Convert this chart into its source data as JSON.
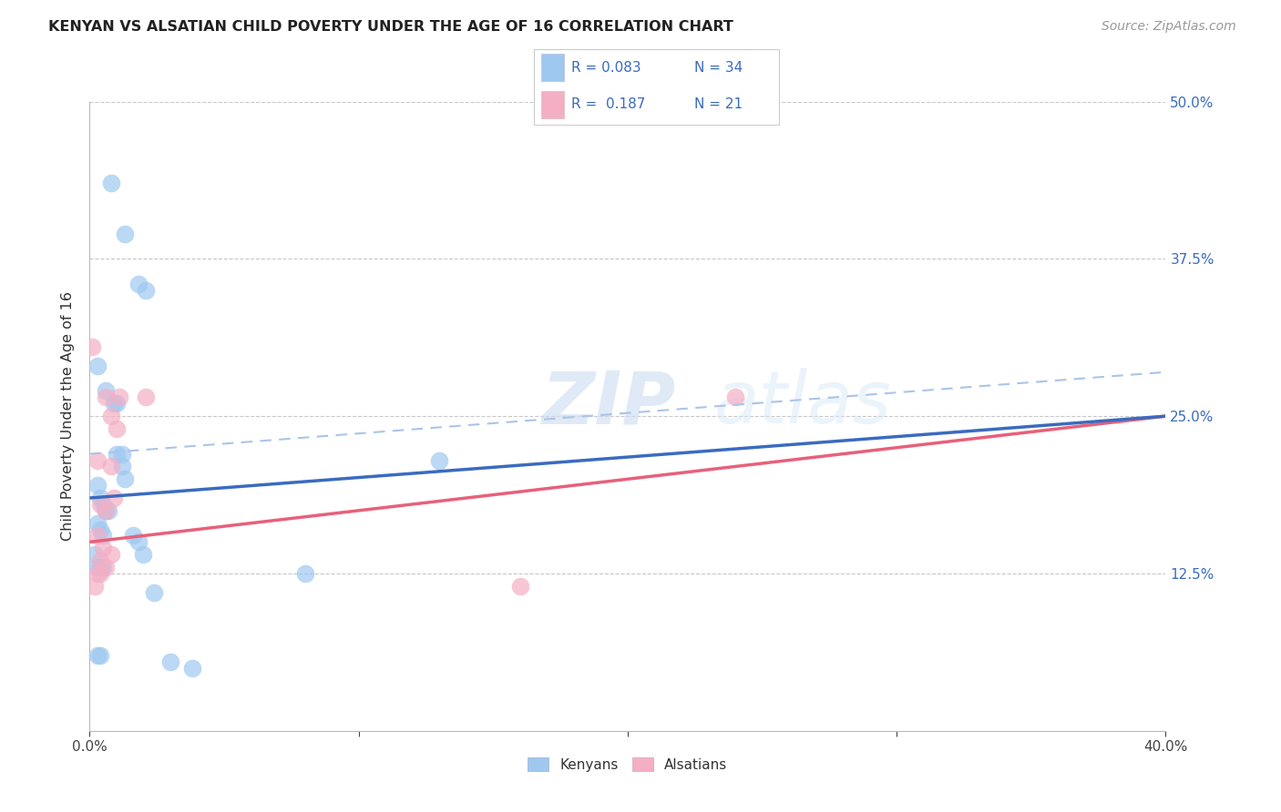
{
  "title": "KENYAN VS ALSATIAN CHILD POVERTY UNDER THE AGE OF 16 CORRELATION CHART",
  "source": "Source: ZipAtlas.com",
  "ylabel": "Child Poverty Under the Age of 16",
  "xlim": [
    0.0,
    0.4
  ],
  "ylim": [
    0.0,
    0.5
  ],
  "xticks": [
    0.0,
    0.1,
    0.2,
    0.3,
    0.4
  ],
  "yticks": [
    0.0,
    0.125,
    0.25,
    0.375,
    0.5
  ],
  "ytick_labels": [
    "",
    "12.5%",
    "25.0%",
    "37.5%",
    "50.0%"
  ],
  "xtick_labels": [
    "0.0%",
    "",
    "",
    "",
    "40.0%"
  ],
  "kenyan_color": "#9ec8f0",
  "alsatian_color": "#f4afc4",
  "line_kenyan_color": "#3a6bbf",
  "line_alsatian_color": "#e8607a",
  "line_kenyan_dashed_color": "#aac4e8",
  "legend_text_color": "#3a6bbf",
  "R_kenyan": 0.083,
  "N_kenyan": 34,
  "R_alsatian": 0.187,
  "N_alsatian": 21,
  "background_color": "#ffffff",
  "grid_color": "#c8c8c8",
  "kenyan_x": [
    0.008,
    0.013,
    0.018,
    0.021,
    0.003,
    0.006,
    0.009,
    0.01,
    0.01,
    0.012,
    0.012,
    0.013,
    0.003,
    0.004,
    0.005,
    0.006,
    0.007,
    0.003,
    0.004,
    0.005,
    0.016,
    0.018,
    0.02,
    0.024,
    0.002,
    0.003,
    0.004,
    0.005,
    0.003,
    0.004,
    0.03,
    0.038,
    0.13,
    0.08
  ],
  "kenyan_y": [
    0.435,
    0.395,
    0.355,
    0.35,
    0.29,
    0.27,
    0.26,
    0.26,
    0.22,
    0.22,
    0.21,
    0.2,
    0.195,
    0.185,
    0.18,
    0.175,
    0.175,
    0.165,
    0.16,
    0.155,
    0.155,
    0.15,
    0.14,
    0.11,
    0.14,
    0.13,
    0.13,
    0.13,
    0.06,
    0.06,
    0.055,
    0.05,
    0.215,
    0.125
  ],
  "alsatian_x": [
    0.001,
    0.006,
    0.008,
    0.01,
    0.011,
    0.021,
    0.003,
    0.004,
    0.006,
    0.009,
    0.003,
    0.005,
    0.008,
    0.24,
    0.004,
    0.006,
    0.003,
    0.004,
    0.002,
    0.16,
    0.008
  ],
  "alsatian_y": [
    0.305,
    0.265,
    0.25,
    0.24,
    0.265,
    0.265,
    0.215,
    0.18,
    0.175,
    0.185,
    0.155,
    0.145,
    0.14,
    0.265,
    0.135,
    0.13,
    0.125,
    0.125,
    0.115,
    0.115,
    0.21
  ],
  "watermark_zip": "ZIP",
  "watermark_atlas": "atlas",
  "marker_size": 200
}
